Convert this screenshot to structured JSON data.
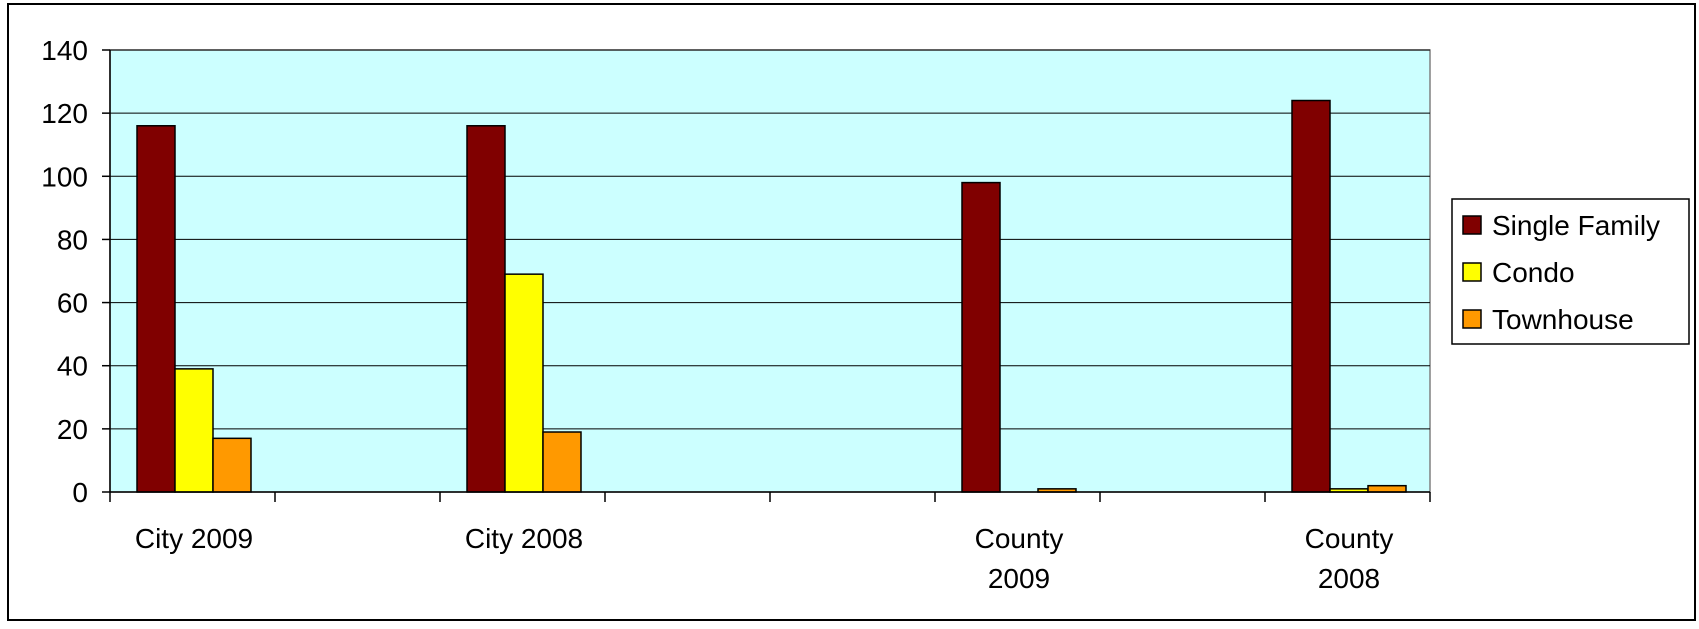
{
  "chart_data": {
    "type": "bar",
    "title": "",
    "xlabel": "",
    "ylabel": "",
    "ylim": [
      0,
      140
    ],
    "yticks": [
      0,
      20,
      40,
      60,
      80,
      100,
      120,
      140
    ],
    "grid": true,
    "legend_position": "right",
    "plot_background": "#CCFFFF",
    "slot_count": 8,
    "categories": [
      {
        "lines": [
          "City 2009"
        ],
        "slot": 0
      },
      {
        "lines": [
          "City 2008"
        ],
        "slot": 2
      },
      {
        "lines": [
          "County",
          "2009"
        ],
        "slot": 5
      },
      {
        "lines": [
          "County",
          "2008"
        ],
        "slot": 7
      }
    ],
    "series": [
      {
        "name": "Single Family",
        "color": "#800000",
        "values": [
          116,
          116,
          98,
          124
        ]
      },
      {
        "name": "Condo",
        "color": "#FFFF00",
        "values": [
          39,
          69,
          0,
          1
        ]
      },
      {
        "name": "Townhouse",
        "color": "#FF9900",
        "values": [
          17,
          19,
          1,
          2
        ]
      }
    ]
  }
}
